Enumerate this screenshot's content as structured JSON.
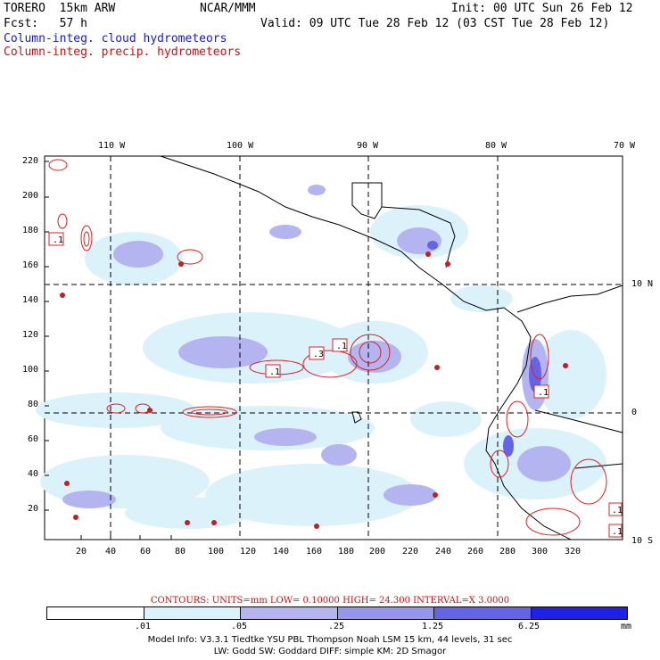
{
  "header": {
    "model": "TORERO  15km ARW",
    "org": "NCAR/MMM",
    "init": "Init: 00 UTC Sun 26 Feb 12",
    "fcst": "Fcst:   57 h",
    "valid": "Valid: 09 UTC Tue 28 Feb 12 (03 CST Tue 28 Feb 12)",
    "field1": "Column-integ. cloud hydrometeors",
    "field2": "Column-integ. precip. hydrometeors"
  },
  "axes": {
    "x_ticks": [
      "20",
      "40",
      "60",
      "80",
      "100",
      "120",
      "140",
      "160",
      "180",
      "200",
      "220",
      "240",
      "260",
      "280",
      "300",
      "320"
    ],
    "y_ticks": [
      "220",
      "200",
      "180",
      "160",
      "140",
      "120",
      "100",
      "80",
      "60",
      "40",
      "20"
    ],
    "lon_labels": [
      "110 W",
      "100 W",
      "90 W",
      "80 W",
      "70 W"
    ],
    "lat_labels": [
      "10 N",
      "0",
      "10 S"
    ]
  },
  "contour_boxes": [
    ".1",
    ".1",
    ".3",
    ".1",
    ".1",
    ".1",
    ".1"
  ],
  "contour_info": "CONTOURS:  UNITS=mm  LOW= 0.10000      HIGH=  24.300      INTERVAL=X  3.0000",
  "colorbar": {
    "labels": [
      ".01",
      ".05",
      ".25",
      "1.25",
      "6.25"
    ],
    "unit": "mm",
    "colors": [
      "#ffffff",
      "#dcf2fa",
      "#b4b4f0",
      "#9696ea",
      "#6464e6",
      "#2020e6"
    ]
  },
  "footer": {
    "line1": "Model Info: V3.3.1   Tiedtke YSU PBL  Thompson    Noah LSM  15 km,   44 levels,   31 sec",
    "line2": "LW: Godd SW: Goddard DIFF: simple KM: 2D Smagor"
  }
}
